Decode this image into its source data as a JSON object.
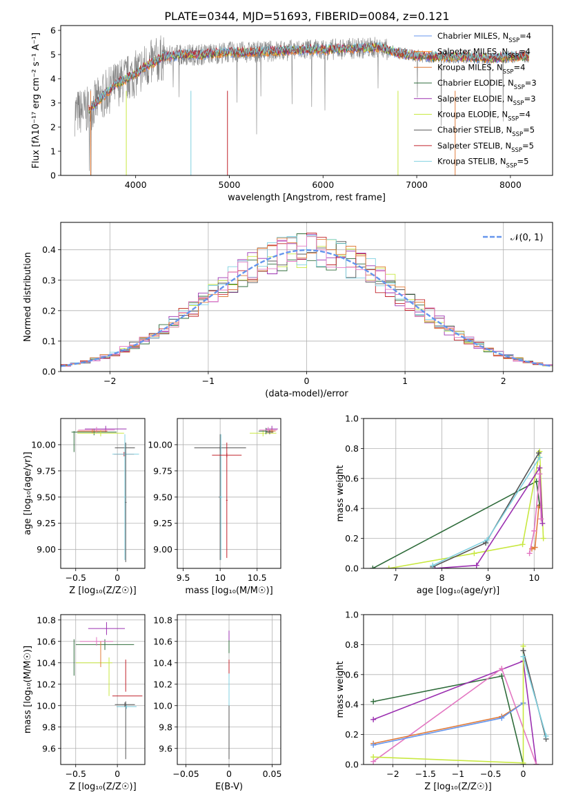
{
  "figure_title": "PLATE=0344, MJD=51693, FIBERID=0084, z=0.121",
  "colors": {
    "chabrier_miles": "#6495ed",
    "salpeter_miles": "#ff7f0e",
    "kroupa_miles": "#e07b39",
    "chabrier_elodie": "#2e6b3a",
    "salpeter_elodie": "#9b30b0",
    "kroupa_elodie": "#c8e840",
    "chabrier_stelib": "#555555",
    "salpeter_stelib": "#c0202a",
    "kroupa_stelib": "#7fd0e0",
    "data": "#808080",
    "pink": "#e377c2"
  },
  "chart_data": [
    {
      "id": "spectrum",
      "type": "line",
      "xlabel": "wavelength [Angstrom, rest frame]",
      "ylabel": "Flux [fλ10⁻¹⁷ erg cm⁻² s⁻¹ A⁻¹]",
      "xlim": [
        3200,
        8450
      ],
      "ylim": [
        0,
        6.2
      ],
      "xticks": [
        4000,
        5000,
        6000,
        7000,
        8000
      ],
      "yticks": [
        0,
        1,
        2,
        3,
        4,
        5,
        6
      ],
      "grid": false,
      "legend_position": "top-right",
      "legend": [
        {
          "label": "Chabrier MILES, N",
          "sub": "SSP",
          "suffix": "=4",
          "color_key": "chabrier_miles"
        },
        {
          "label": "Salpeter MILES, N",
          "sub": "SSP",
          "suffix": "=4",
          "color_key": "salpeter_miles"
        },
        {
          "label": "Kroupa MILES, N",
          "sub": "SSP",
          "suffix": "=4",
          "color_key": "kroupa_miles"
        },
        {
          "label": "Chabrier ELODIE, N",
          "sub": "SSP",
          "suffix": "=3",
          "color_key": "chabrier_elodie"
        },
        {
          "label": "Salpeter ELODIE, N",
          "sub": "SSP",
          "suffix": "=3",
          "color_key": "salpeter_elodie"
        },
        {
          "label": "Kroupa ELODIE, N",
          "sub": "SSP",
          "suffix": "=4",
          "color_key": "kroupa_elodie"
        },
        {
          "label": "Chabrier STELIB, N",
          "sub": "SSP",
          "suffix": "=5",
          "color_key": "chabrier_stelib"
        },
        {
          "label": "Salpeter STELIB, N",
          "sub": "SSP",
          "suffix": "=5",
          "color_key": "salpeter_stelib"
        },
        {
          "label": "Kroupa STELIB, N",
          "sub": "SSP",
          "suffix": "=5",
          "color_key": "kroupa_stelib"
        }
      ],
      "continuum": {
        "x": [
          3350,
          3500,
          3600,
          3800,
          4000,
          4100,
          4300,
          4500,
          4700,
          5000,
          5200,
          5500,
          5800,
          6000,
          6300,
          6600,
          6800,
          7000,
          7200,
          7500,
          7800,
          8000,
          8200
        ],
        "y": [
          2.6,
          2.7,
          3.1,
          3.8,
          4.2,
          4.5,
          4.9,
          5.0,
          5.0,
          5.1,
          5.1,
          5.15,
          5.2,
          5.2,
          5.25,
          5.3,
          5.05,
          4.95,
          4.9,
          4.9,
          4.85,
          4.9,
          4.95
        ]
      },
      "data_noise_amplitude": 0.45
    },
    {
      "id": "residuals",
      "type": "histogram",
      "xlabel": "(data-model)/error",
      "ylabel": "Normed distribution",
      "xlim": [
        -2.5,
        2.5
      ],
      "ylim": [
        0,
        0.49
      ],
      "xticks": [
        -2,
        -1,
        0,
        1,
        2
      ],
      "yticks": [
        0,
        0.1,
        0.2,
        0.3,
        0.4
      ],
      "grid": true,
      "legend": [
        {
          "label": "𝒩(0, 1)",
          "color_key": "chabrier_miles"
        }
      ],
      "legend_position": "top-right",
      "bin_width": 0.1
    },
    {
      "id": "age_vs_Z",
      "type": "errorbar",
      "xlabel": "Z [log₁₀(Z/Z☉)]",
      "ylabel": "age  [log₁₀(age/yr)]",
      "xlim": [
        -0.68,
        0.33
      ],
      "ylim": [
        8.82,
        10.25
      ],
      "xticks": [
        -0.5,
        0.0
      ],
      "yticks": [
        9.0,
        9.25,
        9.5,
        9.75,
        10.0
      ],
      "grid": true,
      "points": [
        {
          "x": -0.28,
          "xerr": 0.27,
          "y": 10.12,
          "yerr": 0.03,
          "color_key": "chabrier_elodie"
        },
        {
          "x": -0.14,
          "xerr": 0.25,
          "y": 10.15,
          "yerr": 0.03,
          "color_key": "salpeter_elodie"
        },
        {
          "x": -0.25,
          "xerr": 0.22,
          "y": 10.14,
          "yerr": 0.03,
          "color_key": "pink"
        },
        {
          "x": -0.2,
          "xerr": 0.28,
          "y": 10.11,
          "yerr": 0.03,
          "color_key": "kroupa_elodie"
        },
        {
          "x": -0.3,
          "xerr": 0.18,
          "y": 10.13,
          "yerr": 0.02,
          "color_key": "kroupa_miles"
        },
        {
          "x": 0.09,
          "xerr": 0.12,
          "y": 9.97,
          "yerr": 0.03,
          "color_key": "chabrier_stelib"
        },
        {
          "x": 0.08,
          "xerr": 0.12,
          "y": 9.91,
          "yerr": 0.02,
          "color_key": "salpeter_stelib"
        },
        {
          "x": 0.1,
          "xerr": 0.16,
          "y": 9.91,
          "yerr": 0.02,
          "color_key": "kroupa_stelib"
        },
        {
          "x": 0.1,
          "xerr": 0.01,
          "y": 9.45,
          "yerr": 0.57,
          "color_key": "chabrier_stelib"
        },
        {
          "x": 0.09,
          "xerr": 0.01,
          "y": 9.5,
          "yerr": 0.6,
          "color_key": "kroupa_stelib"
        },
        {
          "x": -0.52,
          "xerr": 0.0,
          "y": 10.03,
          "yerr": 0.1,
          "color_key": "chabrier_elodie"
        }
      ]
    },
    {
      "id": "age_vs_mass",
      "type": "errorbar",
      "xlabel": "mass [log₁₀(M/M☉)]",
      "ylabel": "",
      "xlim": [
        9.42,
        10.82
      ],
      "ylim": [
        8.82,
        10.25
      ],
      "xticks": [
        9.5,
        10.0,
        10.5
      ],
      "yticks": [
        9.0,
        9.25,
        9.5,
        9.75,
        10.0
      ],
      "grid": true,
      "points": [
        {
          "x": 10.0,
          "xerr": 0.35,
          "y": 9.97,
          "yerr": 0.02,
          "color_key": "chabrier_stelib"
        },
        {
          "x": 10.0,
          "xerr": 0.02,
          "y": 9.5,
          "yerr": 0.6,
          "color_key": "chabrier_stelib"
        },
        {
          "x": 10.01,
          "xerr": 0.02,
          "y": 9.5,
          "yerr": 0.6,
          "color_key": "kroupa_stelib"
        },
        {
          "x": 10.09,
          "xerr": 0.2,
          "y": 9.9,
          "yerr": 0.02,
          "color_key": "salpeter_stelib"
        },
        {
          "x": 10.09,
          "xerr": 0.01,
          "y": 9.47,
          "yerr": 0.55,
          "color_key": "salpeter_stelib"
        },
        {
          "x": 10.58,
          "xerr": 0.18,
          "y": 10.11,
          "yerr": 0.03,
          "color_key": "kroupa_elodie"
        },
        {
          "x": 10.62,
          "xerr": 0.1,
          "y": 10.13,
          "yerr": 0.03,
          "color_key": "chabrier_elodie"
        },
        {
          "x": 10.7,
          "xerr": 0.08,
          "y": 10.15,
          "yerr": 0.03,
          "color_key": "salpeter_elodie"
        },
        {
          "x": 10.65,
          "xerr": 0.12,
          "y": 10.14,
          "yerr": 0.03,
          "color_key": "pink"
        },
        {
          "x": 10.7,
          "xerr": 0.05,
          "y": 10.13,
          "yerr": 0.02,
          "color_key": "kroupa_miles"
        },
        {
          "x": 10.67,
          "xerr": 0.05,
          "y": 10.12,
          "yerr": 0.02,
          "color_key": "chabrier_stelib"
        }
      ]
    },
    {
      "id": "weight_vs_age",
      "type": "line",
      "xlabel": "age  [log₁₀(age/yr)]",
      "ylabel": "mass weight",
      "xlim": [
        6.3,
        10.4
      ],
      "ylim": [
        0,
        1
      ],
      "xticks": [
        7,
        8,
        9,
        10
      ],
      "yticks": [
        0.0,
        0.2,
        0.4,
        0.6,
        0.8,
        1.0
      ],
      "grid": true,
      "series": [
        {
          "color_key": "chabrier_elodie",
          "x": [
            6.5,
            10.05,
            10.12
          ],
          "y": [
            0.0,
            0.58,
            0.42
          ]
        },
        {
          "color_key": "kroupa_elodie",
          "x": [
            6.85,
            8.7,
            9.75,
            10.12,
            10.2
          ],
          "y": [
            0.0,
            0.1,
            0.16,
            0.78,
            0.2
          ]
        },
        {
          "color_key": "salpeter_elodie",
          "x": [
            7.85,
            8.75,
            10.12,
            10.18
          ],
          "y": [
            0.0,
            0.02,
            0.67,
            0.3
          ]
        },
        {
          "color_key": "chabrier_stelib",
          "x": [
            7.8,
            8.95,
            10.1
          ],
          "y": [
            0.01,
            0.17,
            0.77
          ]
        },
        {
          "color_key": "kroupa_stelib",
          "x": [
            7.8,
            8.98,
            10.12
          ],
          "y": [
            0.02,
            0.19,
            0.74
          ]
        },
        {
          "color_key": "kroupa_miles",
          "x": [
            9.95,
            10.02,
            10.1
          ],
          "y": [
            0.13,
            0.14,
            0.41
          ]
        },
        {
          "color_key": "pink",
          "x": [
            9.9,
            10.0,
            10.12,
            10.15
          ],
          "y": [
            0.1,
            0.25,
            0.63,
            0.33
          ]
        }
      ]
    },
    {
      "id": "mass_vs_Z",
      "type": "errorbar",
      "xlabel": "Z [log₁₀(Z/Z☉)]",
      "ylabel": "mass [log₁₀(M/M☉)]",
      "xlim": [
        -0.68,
        0.33
      ],
      "ylim": [
        9.45,
        10.85
      ],
      "xticks": [
        -0.5,
        0.0
      ],
      "yticks": [
        9.6,
        9.8,
        10.0,
        10.2,
        10.4,
        10.6,
        10.8
      ],
      "grid": true,
      "points": [
        {
          "x": -0.15,
          "xerr": 0.35,
          "y": 10.57,
          "yerr": 0.05,
          "color_key": "chabrier_elodie"
        },
        {
          "x": -0.52,
          "xerr": 0.0,
          "y": 10.45,
          "yerr": 0.17,
          "color_key": "chabrier_elodie"
        },
        {
          "x": -0.13,
          "xerr": 0.22,
          "y": 10.72,
          "yerr": 0.06,
          "color_key": "salpeter_elodie"
        },
        {
          "x": -0.25,
          "xerr": 0.2,
          "y": 10.6,
          "yerr": 0.04,
          "color_key": "pink"
        },
        {
          "x": -0.28,
          "xerr": 0.22,
          "y": 10.4,
          "yerr": 0.0,
          "color_key": "kroupa_elodie"
        },
        {
          "x": -0.1,
          "xerr": 0.0,
          "y": 10.27,
          "yerr": 0.18,
          "color_key": "kroupa_elodie"
        },
        {
          "x": -0.2,
          "xerr": 0.0,
          "y": 10.48,
          "yerr": 0.12,
          "color_key": "kroupa_miles"
        },
        {
          "x": 0.1,
          "xerr": 0.0,
          "y": 9.77,
          "yerr": 0.27,
          "color_key": "chabrier_stelib"
        },
        {
          "x": 0.12,
          "xerr": 0.18,
          "y": 10.09,
          "yerr": 0.0,
          "color_key": "salpeter_stelib"
        },
        {
          "x": 0.1,
          "xerr": 0.0,
          "y": 10.28,
          "yerr": 0.15,
          "color_key": "salpeter_stelib"
        },
        {
          "x": 0.11,
          "xerr": 0.12,
          "y": 9.99,
          "yerr": 0.02,
          "color_key": "kroupa_stelib"
        },
        {
          "x": 0.09,
          "xerr": 0.12,
          "y": 10.01,
          "yerr": 0.02,
          "color_key": "chabrier_stelib"
        }
      ]
    },
    {
      "id": "mass_vs_ebv",
      "type": "errorbar",
      "xlabel": "E(B-V)",
      "ylabel": "",
      "xlim": [
        -0.06,
        0.06
      ],
      "ylim": [
        9.45,
        10.85
      ],
      "xticks": [
        -0.05,
        0.0,
        0.05
      ],
      "yticks": [
        9.6,
        9.8,
        10.0,
        10.2,
        10.4,
        10.6,
        10.8
      ],
      "grid": true,
      "points": [
        {
          "x": 0.0,
          "xerr": 0.0,
          "y": 10.6,
          "yerr": 0.1,
          "color_key": "salpeter_elodie"
        },
        {
          "x": 0.0,
          "xerr": 0.0,
          "y": 10.55,
          "yerr": 0.06,
          "color_key": "chabrier_elodie"
        },
        {
          "x": 0.0,
          "xerr": 0.0,
          "y": 10.35,
          "yerr": 0.08,
          "color_key": "salpeter_stelib"
        },
        {
          "x": 0.0,
          "xerr": 0.0,
          "y": 10.0,
          "yerr": 0.3,
          "color_key": "kroupa_stelib"
        },
        {
          "x": 0.0,
          "xerr": 0.0,
          "y": 9.75,
          "yerr": 0.25,
          "color_key": "chabrier_stelib"
        }
      ]
    },
    {
      "id": "weight_vs_Z",
      "type": "line",
      "xlabel": "Z [log₁₀(Z/Z☉)]",
      "ylabel": "mass weight",
      "xlim": [
        -2.45,
        0.45
      ],
      "ylim": [
        0,
        1
      ],
      "xticks": [
        -2.0,
        -1.5,
        -1.0,
        -0.5,
        0.0
      ],
      "yticks": [
        0.0,
        0.2,
        0.4,
        0.6,
        0.8,
        1.0
      ],
      "grid": true,
      "series": [
        {
          "color_key": "chabrier_elodie",
          "x": [
            -2.3,
            -0.33,
            0.0
          ],
          "y": [
            0.42,
            0.59,
            0.0
          ]
        },
        {
          "color_key": "salpeter_elodie",
          "x": [
            -2.3,
            0.0,
            0.2
          ],
          "y": [
            0.3,
            0.69,
            0.0
          ]
        },
        {
          "color_key": "pink",
          "x": [
            -2.3,
            -0.33,
            0.2
          ],
          "y": [
            0.02,
            0.64,
            0.0
          ]
        },
        {
          "color_key": "kroupa_miles",
          "x": [
            -2.3,
            -0.33,
            0.0
          ],
          "y": [
            0.14,
            0.32,
            0.41
          ]
        },
        {
          "color_key": "chabrier_miles",
          "x": [
            -2.3,
            -0.33,
            0.0
          ],
          "y": [
            0.13,
            0.31,
            0.41
          ]
        },
        {
          "color_key": "kroupa_elodie",
          "x": [
            -2.3,
            0.0,
            0.0
          ],
          "y": [
            0.05,
            0.01,
            0.79
          ]
        },
        {
          "color_key": "chabrier_stelib",
          "x": [
            0.0,
            0.35
          ],
          "y": [
            0.76,
            0.17
          ]
        },
        {
          "color_key": "kroupa_stelib",
          "x": [
            0.0,
            0.35
          ],
          "y": [
            0.72,
            0.19
          ]
        }
      ]
    }
  ]
}
